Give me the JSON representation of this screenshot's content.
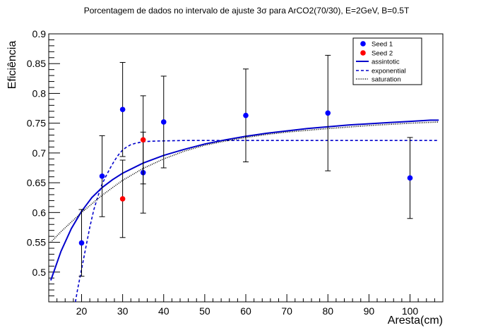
{
  "chart_data": {
    "type": "scatter",
    "title": "Porcentagem de dados no intervalo de ajuste 3σ para ArCO2(70/30), E=2GeV, B=0.5T",
    "xlabel": "Aresta(cm)",
    "ylabel": "Eficiência",
    "xlim": [
      12,
      108
    ],
    "ylim": [
      0.45,
      0.9
    ],
    "x_ticks": [
      20,
      30,
      40,
      50,
      60,
      70,
      80,
      90,
      100
    ],
    "y_ticks": [
      0.5,
      0.55,
      0.6,
      0.65,
      0.7,
      0.75,
      0.8,
      0.85,
      0.9
    ],
    "grid": false,
    "legend_position": "top-right",
    "legend": [
      "Seed 1",
      "Seed 2",
      "assintotic",
      "exponential",
      "saturation"
    ],
    "series": [
      {
        "name": "Seed 1",
        "kind": "points",
        "color": "#0000ff",
        "points": [
          {
            "x": 20,
            "y": 0.549,
            "err": 0.056
          },
          {
            "x": 25,
            "y": 0.661,
            "err": 0.068
          },
          {
            "x": 30,
            "y": 0.773,
            "err": 0.079
          },
          {
            "x": 35,
            "y": 0.667,
            "err": 0.068
          },
          {
            "x": 40,
            "y": 0.752,
            "err": 0.077
          },
          {
            "x": 60,
            "y": 0.763,
            "err": 0.078
          },
          {
            "x": 80,
            "y": 0.767,
            "err": 0.097
          },
          {
            "x": 100,
            "y": 0.658,
            "err": 0.068
          }
        ]
      },
      {
        "name": "Seed 2",
        "kind": "points",
        "color": "#ff0000",
        "points": [
          {
            "x": 30,
            "y": 0.623,
            "err": 0.065
          },
          {
            "x": 35,
            "y": 0.722,
            "err": 0.074
          }
        ]
      },
      {
        "name": "assintotic",
        "kind": "curve",
        "style": "solid",
        "color": "#0000cc",
        "points": [
          [
            12.5,
            0.486
          ],
          [
            15,
            0.535
          ],
          [
            17.5,
            0.573
          ],
          [
            20,
            0.602
          ],
          [
            22.5,
            0.625
          ],
          [
            25,
            0.642
          ],
          [
            27.5,
            0.655
          ],
          [
            30,
            0.666
          ],
          [
            35,
            0.683
          ],
          [
            40,
            0.696
          ],
          [
            45,
            0.706
          ],
          [
            50,
            0.715
          ],
          [
            55,
            0.722
          ],
          [
            60,
            0.728
          ],
          [
            65,
            0.733
          ],
          [
            70,
            0.737
          ],
          [
            75,
            0.741
          ],
          [
            80,
            0.744
          ],
          [
            85,
            0.747
          ],
          [
            90,
            0.749
          ],
          [
            95,
            0.751
          ],
          [
            100,
            0.753
          ],
          [
            105,
            0.755
          ],
          [
            107,
            0.755
          ]
        ]
      },
      {
        "name": "exponential",
        "kind": "curve",
        "style": "dashed",
        "color": "#0000cc",
        "points": [
          [
            18.5,
            0.45
          ],
          [
            19,
            0.47
          ],
          [
            20,
            0.505
          ],
          [
            21,
            0.54
          ],
          [
            22,
            0.575
          ],
          [
            23,
            0.605
          ],
          [
            24,
            0.628
          ],
          [
            25,
            0.648
          ],
          [
            26,
            0.662
          ],
          [
            27,
            0.675
          ],
          [
            28,
            0.687
          ],
          [
            29,
            0.697
          ],
          [
            30,
            0.705
          ],
          [
            31,
            0.71
          ],
          [
            32,
            0.714
          ],
          [
            33,
            0.716
          ],
          [
            35,
            0.719
          ],
          [
            38,
            0.72
          ],
          [
            45,
            0.721
          ],
          [
            60,
            0.721
          ],
          [
            80,
            0.721
          ],
          [
            107,
            0.721
          ]
        ]
      },
      {
        "name": "saturation",
        "kind": "curve",
        "style": "dotted",
        "color": "#000000",
        "points": [
          [
            12.5,
            0.55
          ],
          [
            15,
            0.568
          ],
          [
            17.5,
            0.584
          ],
          [
            20,
            0.6
          ],
          [
            25,
            0.629
          ],
          [
            30,
            0.654
          ],
          [
            35,
            0.674
          ],
          [
            40,
            0.69
          ],
          [
            45,
            0.703
          ],
          [
            50,
            0.713
          ],
          [
            55,
            0.72
          ],
          [
            60,
            0.726
          ],
          [
            65,
            0.731
          ],
          [
            70,
            0.735
          ],
          [
            80,
            0.741
          ],
          [
            90,
            0.746
          ],
          [
            100,
            0.75
          ],
          [
            107,
            0.752
          ]
        ]
      }
    ]
  }
}
